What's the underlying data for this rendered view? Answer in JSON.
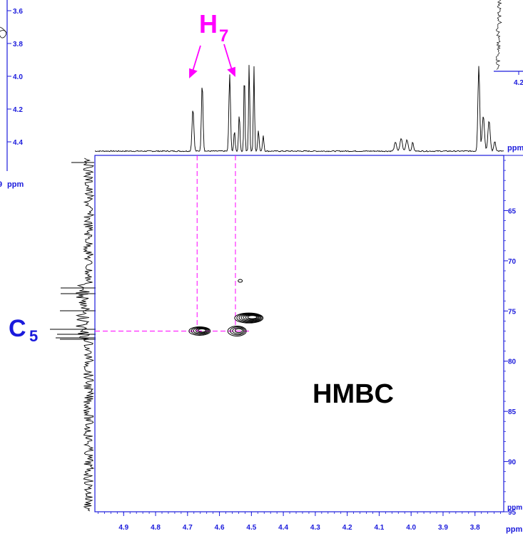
{
  "labels": {
    "h7_main": "H",
    "h7_sub": "7",
    "c5_main": "C",
    "c5_sub": "5",
    "hmbc": "HMBC",
    "x_unit": "ppm",
    "y_unit": "ppm",
    "topright_unit": "ppm",
    "topright_tick": "4.2",
    "topleft_unit": "ppm",
    "topleft_unit_prefix": "9"
  },
  "colors": {
    "axis_blue": "#1a1adc",
    "magenta": "#ff00ff",
    "spectrum": "#000000",
    "label_blue": "#1a1adc"
  },
  "chart_data": {
    "type": "heatmap",
    "title": "HMBC",
    "x_axis": {
      "unit": "ppm",
      "reversed": true,
      "range": [
        4.99,
        3.71
      ],
      "ticks": [
        4.9,
        4.8,
        4.7,
        4.6,
        4.5,
        4.4,
        4.3,
        4.2,
        4.1,
        4.0,
        3.9,
        3.8
      ],
      "tick_labels": [
        "4.9",
        "4.8",
        "4.7",
        "4.6",
        "4.5",
        "4.4",
        "4.3",
        "4.2",
        "4.1",
        "4.0",
        "3.9",
        "3.8"
      ]
    },
    "y_axis": {
      "unit": "ppm",
      "range": [
        59.5,
        95
      ],
      "ticks": [
        65,
        70,
        75,
        80,
        85,
        90,
        95
      ],
      "tick_labels": [
        "65",
        "70",
        "75",
        "80",
        "85",
        "90",
        "95"
      ]
    },
    "cross_peaks": [
      {
        "x": 4.662,
        "y": 77.0,
        "label": "H7/C5"
      },
      {
        "x": 4.545,
        "y": 77.0,
        "label": "H7/C5"
      },
      {
        "x": 4.508,
        "y": 75.7
      },
      {
        "x": 4.535,
        "y": 72.0
      }
    ],
    "annotations": {
      "H7_peaks_ppm": [
        4.67,
        4.55
      ],
      "C5_ppm": 77.0
    },
    "f2_projection_peaks_ppm": [
      4.68,
      4.65,
      4.565,
      4.55,
      4.53,
      4.51,
      4.5,
      4.49,
      4.46,
      4.03,
      4.02,
      4.01,
      3.79,
      3.78,
      3.76
    ],
    "left_panel": {
      "tick_labels": [
        "3.6",
        "3.8",
        "4.0",
        "4.2",
        "4.4"
      ],
      "ticks": [
        3.6,
        3.8,
        4.0,
        4.2,
        4.4
      ]
    }
  }
}
